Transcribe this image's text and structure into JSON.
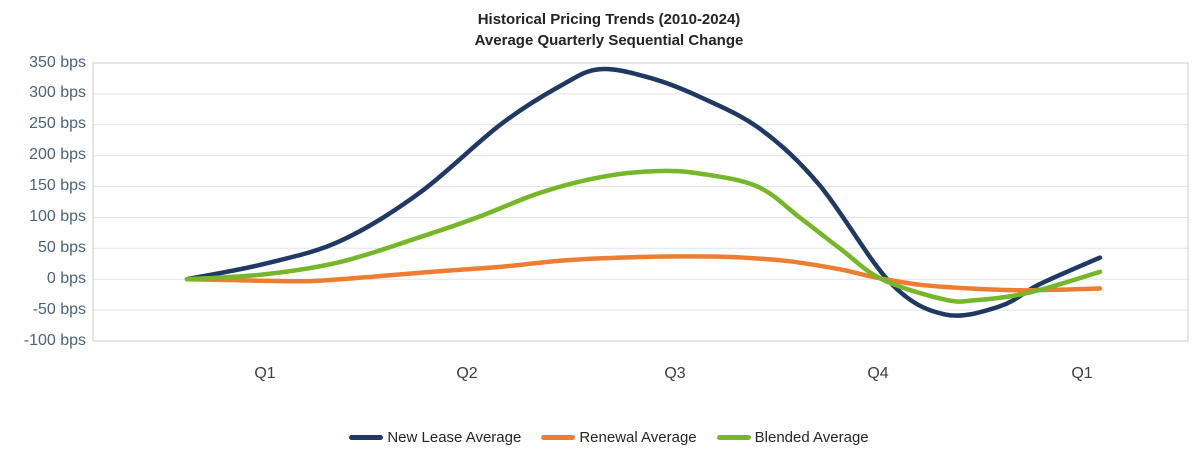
{
  "title": {
    "line1": "Historical Pricing Trends (2010-2024)",
    "line2": "Average Quarterly Sequential Change"
  },
  "y_axis": {
    "labels": [
      "350 bps",
      "300 bps",
      "250 bps",
      "200 bps",
      "150 bps",
      "100 bps",
      "50 bps",
      "0 bps",
      "-50 bps",
      "-100 bps"
    ],
    "unit": "bps",
    "label_color": "#4B627B"
  },
  "x_axis": {
    "labels": [
      "Q1",
      "Q2",
      "Q3",
      "Q4",
      "Q1"
    ],
    "label_color": "#3D3D3D"
  },
  "legend": [
    {
      "label": "New Lease Average",
      "color": "#1F3864"
    },
    {
      "label": "Renewal Average",
      "color": "#ED7D31"
    },
    {
      "label": "Blended Average",
      "color": "#76B72A"
    }
  ],
  "colors": {
    "gridline": "#DFE3EA",
    "plot_border": "#C9CED6",
    "title_text": "#242424"
  },
  "chart_data": {
    "type": "line",
    "title": "Historical Pricing Trends (2010-2024)",
    "subtitle": "Average Quarterly Sequential Change",
    "categories": [
      "Q1",
      "Q2",
      "Q3",
      "Q4",
      "Q1"
    ],
    "ylabel": "bps",
    "ylim": [
      -100,
      350
    ],
    "ytick_step": 50,
    "grid": true,
    "legend_position": "bottom",
    "series": [
      {
        "name": "New Lease Average",
        "color": "#1F3864",
        "values_at_labels": [
          25,
          215,
          300,
          5,
          30
        ],
        "peak_bps": 340,
        "min_bps": -57,
        "samples": [
          [
            0.0,
            0
          ],
          [
            0.085,
            25
          ],
          [
            0.168,
            62
          ],
          [
            0.255,
            140
          ],
          [
            0.343,
            250
          ],
          [
            0.409,
            313
          ],
          [
            0.452,
            340
          ],
          [
            0.507,
            326
          ],
          [
            0.562,
            295
          ],
          [
            0.628,
            243
          ],
          [
            0.693,
            152
          ],
          [
            0.77,
            -5
          ],
          [
            0.83,
            -57
          ],
          [
            0.89,
            -44
          ],
          [
            0.934,
            -8
          ],
          [
            1.0,
            35
          ]
        ]
      },
      {
        "name": "Renewal Average",
        "color": "#ED7D31",
        "values_at_labels": [
          -2,
          16,
          37,
          0,
          -16
        ],
        "peak_bps": 37,
        "min_bps": -18,
        "samples": [
          [
            0.0,
            0
          ],
          [
            0.069,
            -2
          ],
          [
            0.135,
            -3
          ],
          [
            0.211,
            5
          ],
          [
            0.277,
            13
          ],
          [
            0.343,
            20
          ],
          [
            0.409,
            30
          ],
          [
            0.474,
            35
          ],
          [
            0.54,
            37
          ],
          [
            0.595,
            36
          ],
          [
            0.66,
            29
          ],
          [
            0.715,
            16
          ],
          [
            0.754,
            3
          ],
          [
            0.803,
            -9
          ],
          [
            0.858,
            -15
          ],
          [
            0.912,
            -18
          ],
          [
            0.956,
            -17
          ],
          [
            1.0,
            -15
          ]
        ]
      },
      {
        "name": "Blended Average",
        "color": "#76B72A",
        "values_at_labels": [
          8,
          95,
          174,
          0,
          5
        ],
        "peak_bps": 175,
        "min_bps": -34,
        "samples": [
          [
            0.0,
            0
          ],
          [
            0.085,
            8
          ],
          [
            0.168,
            28
          ],
          [
            0.255,
            68
          ],
          [
            0.318,
            100
          ],
          [
            0.387,
            140
          ],
          [
            0.452,
            165
          ],
          [
            0.513,
            175
          ],
          [
            0.562,
            171
          ],
          [
            0.625,
            150
          ],
          [
            0.671,
            100
          ],
          [
            0.715,
            50
          ],
          [
            0.761,
            0
          ],
          [
            0.83,
            -33
          ],
          [
            0.863,
            -34
          ],
          [
            0.912,
            -25
          ],
          [
            0.956,
            -8
          ],
          [
            1.0,
            12
          ]
        ]
      }
    ]
  }
}
